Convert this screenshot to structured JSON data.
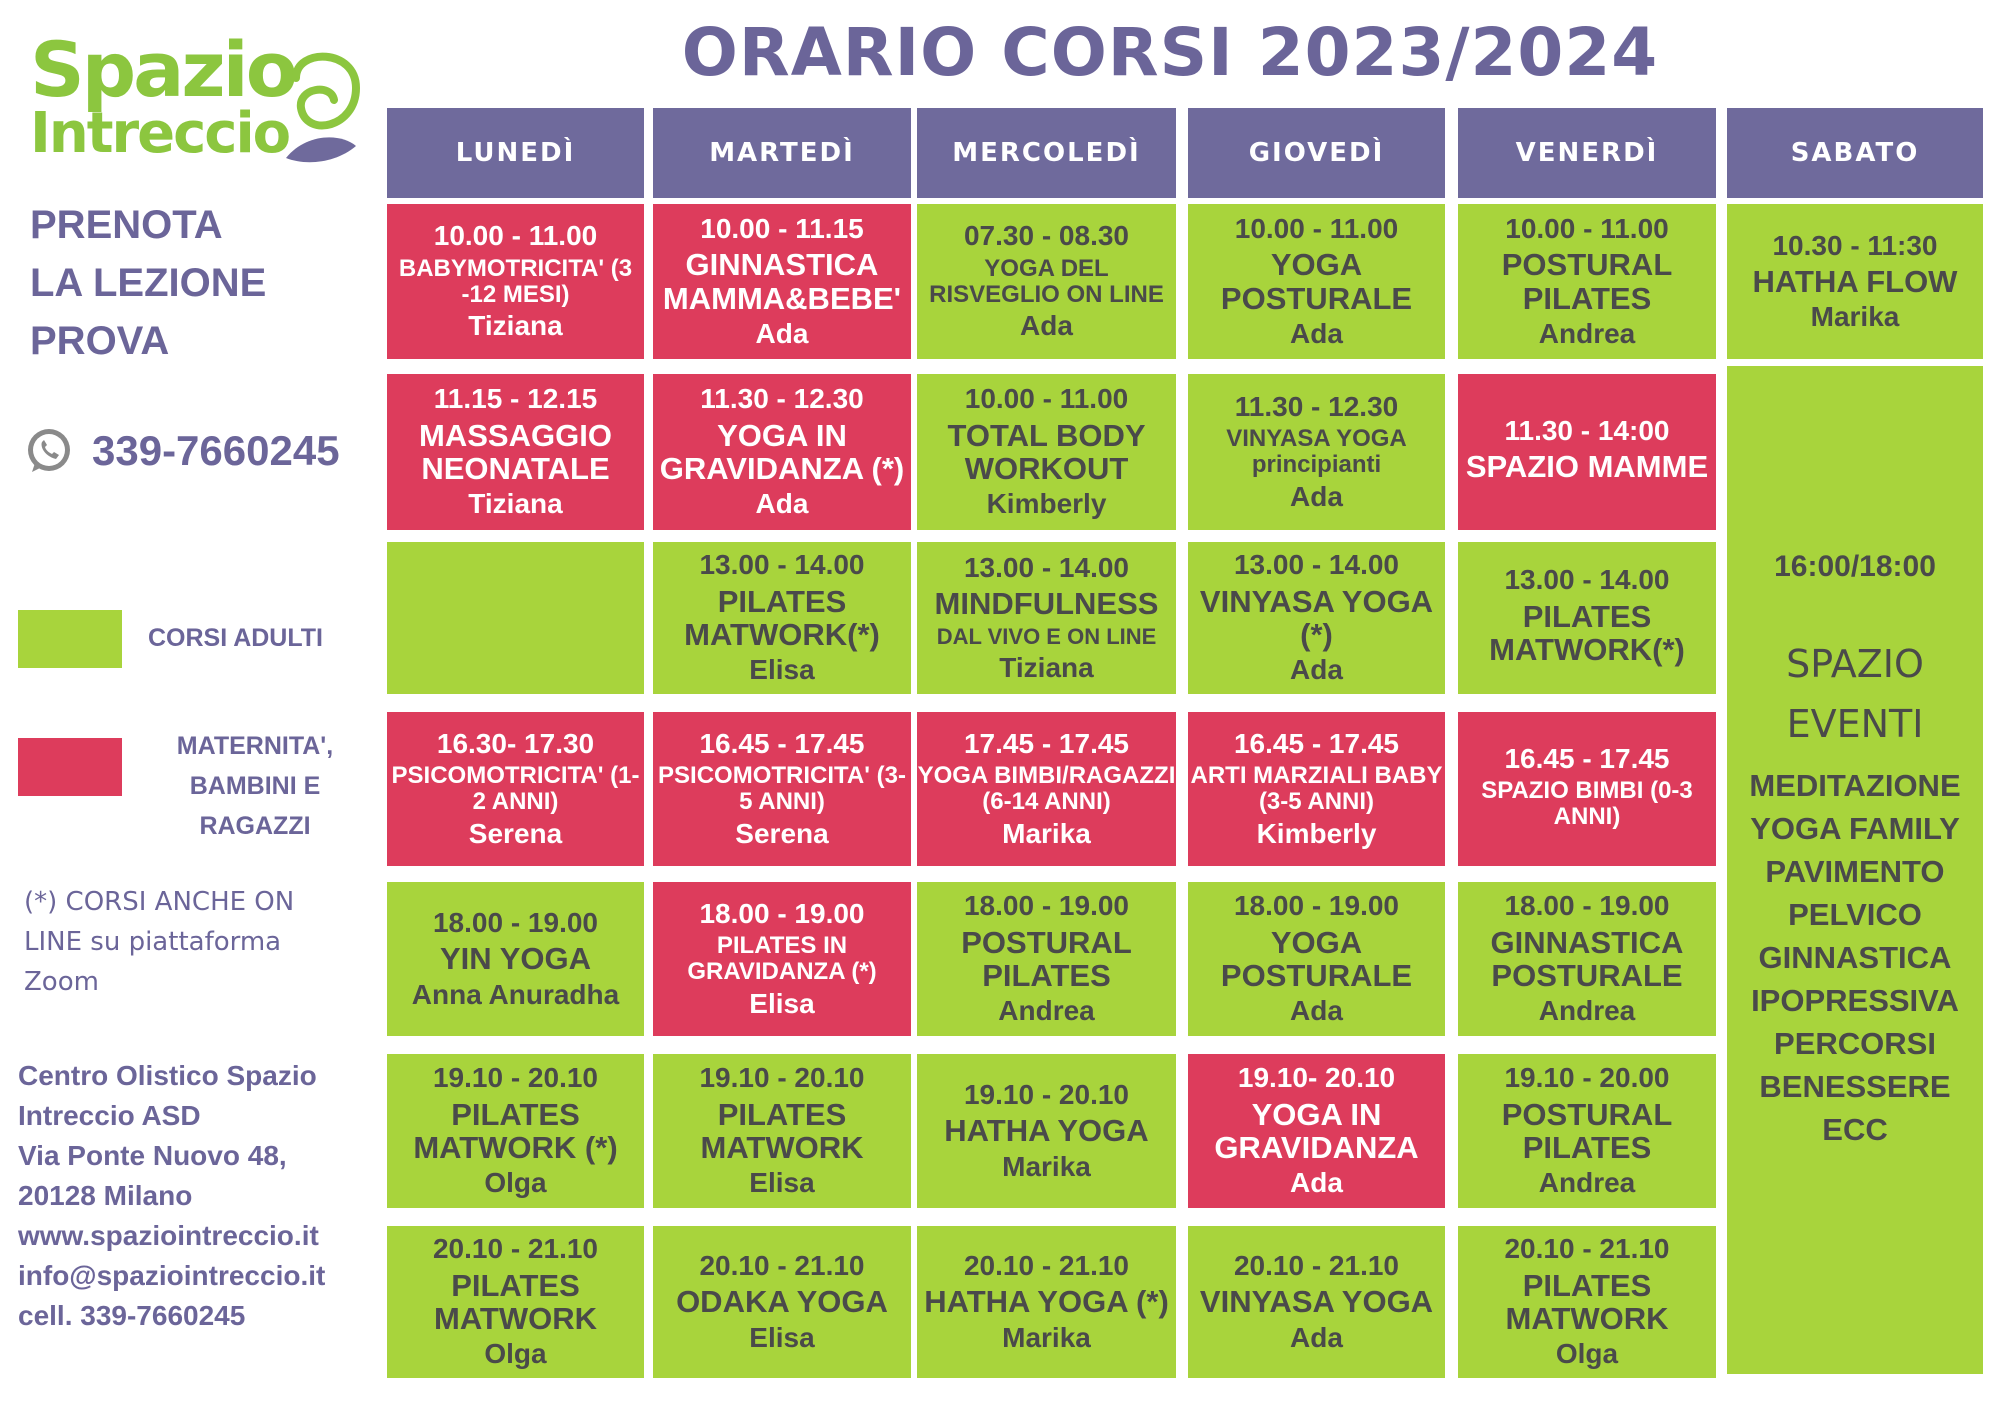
{
  "title": "ORARIO CORSI 2023/2024",
  "logo": {
    "line1": "Spazio",
    "line2": "Intreccio"
  },
  "sidebar": {
    "prenota": [
      "PRENOTA",
      "LA LEZIONE",
      "PROVA"
    ],
    "phone": "339-7660245",
    "legend": {
      "adulti": "CORSI ADULTI",
      "maternita": [
        "MATERNITA',",
        "BAMBINI E",
        "RAGAZZI"
      ]
    },
    "online_note": [
      "(*) CORSI ANCHE ON",
      "LINE su piattaforma",
      "Zoom"
    ],
    "contacts": [
      "Centro Olistico Spazio",
      "Intreccio ASD",
      "Via Ponte Nuovo 48,",
      "20128 Milano",
      "www.spaziointreccio.it",
      "info@spaziointreccio.it",
      "cell. 339-7660245"
    ]
  },
  "colors": {
    "adulti": "#a8d43c",
    "maternita": "#dd3c5c",
    "header": "#6f6a9c",
    "text": "#6b6599"
  },
  "days": [
    "LUNEDÌ",
    "MARTEDÌ",
    "MERCOLEDÌ",
    "GIOVEDÌ",
    "VENERDÌ",
    "SABATO"
  ],
  "schedule": {
    "lunedi": [
      {
        "time": "10.00 - 11.00",
        "name": "BABYMOTRICITA' (3 -12 MESI)",
        "instructor": "Tiziana",
        "type": "maternita"
      },
      {
        "time": "11.15 - 12.15",
        "name": "MASSAGGIO NEONATALE",
        "instructor": "Tiziana",
        "type": "maternita"
      },
      {
        "time": "",
        "name": "",
        "instructor": "",
        "type": "adulti"
      },
      {
        "time": "16.30- 17.30",
        "name": "PSICOMOTRICITA' (1-2 ANNI)",
        "instructor": "Serena",
        "type": "maternita"
      },
      {
        "time": "18.00 - 19.00",
        "name": "YIN YOGA",
        "instructor": "Anna Anuradha",
        "type": "adulti"
      },
      {
        "time": "19.10 - 20.10",
        "name": "PILATES MATWORK (*)",
        "instructor": "Olga",
        "type": "adulti"
      },
      {
        "time": "20.10 - 21.10",
        "name": "PILATES MATWORK",
        "instructor": "Olga",
        "type": "adulti"
      }
    ],
    "martedi": [
      {
        "time": "10.00 - 11.15",
        "name": "GINNASTICA MAMMA&BEBE'",
        "instructor": "Ada",
        "type": "maternita"
      },
      {
        "time": "11.30 - 12.30",
        "name": "YOGA IN GRAVIDANZA (*)",
        "instructor": "Ada",
        "type": "maternita"
      },
      {
        "time": "13.00 - 14.00",
        "name": "PILATES MATWORK(*)",
        "instructor": "Elisa",
        "type": "adulti"
      },
      {
        "time": "16.45 - 17.45",
        "name": "PSICOMOTRICITA' (3-5 ANNI)",
        "instructor": "Serena",
        "type": "maternita"
      },
      {
        "time": "18.00 - 19.00",
        "name": "PILATES IN GRAVIDANZA (*)",
        "instructor": "Elisa",
        "type": "maternita"
      },
      {
        "time": "19.10 - 20.10",
        "name": "PILATES MATWORK",
        "instructor": "Elisa",
        "type": "adulti"
      },
      {
        "time": "20.10 - 21.10",
        "name": "ODAKA YOGA",
        "instructor": "Elisa",
        "type": "adulti"
      }
    ],
    "mercoledi": [
      {
        "time": "07.30 - 08.30",
        "name": "YOGA DEL RISVEGLIO ON LINE",
        "instructor": "Ada",
        "type": "adulti"
      },
      {
        "time": "10.00 - 11.00",
        "name": "TOTAL BODY WORKOUT",
        "instructor": "Kimberly",
        "type": "adulti"
      },
      {
        "time": "13.00 - 14.00",
        "name": "MINDFULNESS",
        "subtitle": "DAL VIVO E ON LINE",
        "instructor": "Tiziana",
        "type": "adulti"
      },
      {
        "time": "17.45 - 17.45",
        "name": "YOGA BIMBI/RAGAZZI (6-14 ANNI)",
        "instructor": "Marika",
        "type": "maternita"
      },
      {
        "time": "18.00 - 19.00",
        "name": "POSTURAL PILATES",
        "instructor": "Andrea",
        "type": "adulti"
      },
      {
        "time": "19.10 - 20.10",
        "name": "HATHA YOGA",
        "instructor": "Marika",
        "type": "adulti"
      },
      {
        "time": "20.10 - 21.10",
        "name": "HATHA YOGA (*)",
        "instructor": "Marika",
        "type": "adulti"
      }
    ],
    "giovedi": [
      {
        "time": "10.00 - 11.00",
        "name": "YOGA POSTURALE",
        "instructor": "Ada",
        "type": "adulti"
      },
      {
        "time": "11.30 - 12.30",
        "name": "VINYASA YOGA principianti",
        "instructor": "Ada",
        "type": "adulti"
      },
      {
        "time": "13.00 - 14.00",
        "name": "VINYASA YOGA (*)",
        "instructor": "Ada",
        "type": "adulti"
      },
      {
        "time": "16.45 - 17.45",
        "name": "ARTI MARZIALI BABY (3-5 ANNI)",
        "instructor": "Kimberly",
        "type": "maternita"
      },
      {
        "time": "18.00 - 19.00",
        "name": "YOGA POSTURALE",
        "instructor": "Ada",
        "type": "adulti"
      },
      {
        "time": "19.10- 20.10",
        "name": "YOGA IN GRAVIDANZA",
        "instructor": "Ada",
        "type": "maternita"
      },
      {
        "time": "20.10 - 21.10",
        "name": "VINYASA YOGA",
        "instructor": "Ada",
        "type": "adulti"
      }
    ],
    "venerdi": [
      {
        "time": "10.00 - 11.00",
        "name": "POSTURAL PILATES",
        "instructor": "Andrea",
        "type": "adulti"
      },
      {
        "time": "11.30 - 14:00",
        "name": "SPAZIO MAMME",
        "instructor": "",
        "type": "maternita"
      },
      {
        "time": "13.00 - 14.00",
        "name": "PILATES MATWORK(*)",
        "instructor": "",
        "type": "adulti"
      },
      {
        "time": "16.45 - 17.45",
        "name": "SPAZIO BIMBI (0-3 ANNI)",
        "instructor": "",
        "type": "maternita"
      },
      {
        "time": "18.00 - 19.00",
        "name": "GINNASTICA POSTURALE",
        "instructor": "Andrea",
        "type": "adulti"
      },
      {
        "time": "19.10 - 20.00",
        "name": "POSTURAL PILATES",
        "instructor": "Andrea",
        "type": "adulti"
      },
      {
        "time": "20.10 - 21.10",
        "name": "PILATES MATWORK",
        "instructor": "Olga",
        "type": "adulti"
      }
    ],
    "sabato": {
      "first": {
        "time": "10.30 - 11:30",
        "name": "HATHA FLOW",
        "instructor": "Marika",
        "type": "adulti"
      },
      "eventi": {
        "time": "16:00/18:00",
        "title": [
          "SPAZIO",
          "EVENTI"
        ],
        "items": [
          "MEDITAZIONE",
          "YOGA FAMILY",
          "PAVIMENTO",
          "PELVICO",
          "GINNASTICA",
          "IPOPRESSIVA",
          "PERCORSI",
          "BENESSERE",
          "ECC"
        ]
      }
    }
  }
}
